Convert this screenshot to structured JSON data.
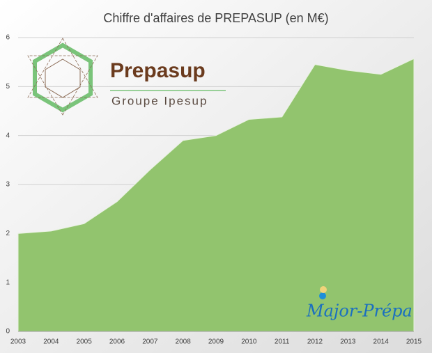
{
  "chart_data": {
    "type": "area",
    "title": "Chiffre d'affaires de PREPASUP (en M€)",
    "categories": [
      "2003",
      "2004",
      "2005",
      "2006",
      "2007",
      "2008",
      "2009",
      "2010",
      "2011",
      "2012",
      "2013",
      "2014",
      "2015"
    ],
    "values": [
      2.0,
      2.05,
      2.2,
      2.65,
      3.3,
      3.9,
      4.0,
      4.33,
      4.38,
      5.45,
      5.33,
      5.25,
      5.57
    ],
    "color": "#92c46e",
    "ylim": [
      0,
      6
    ],
    "yticks": [
      0,
      1,
      2,
      3,
      4,
      5,
      6
    ],
    "grid": true,
    "annotations": [
      "Prepasup",
      "Groupe Ipesup",
      "Major-Prépa"
    ]
  }
}
